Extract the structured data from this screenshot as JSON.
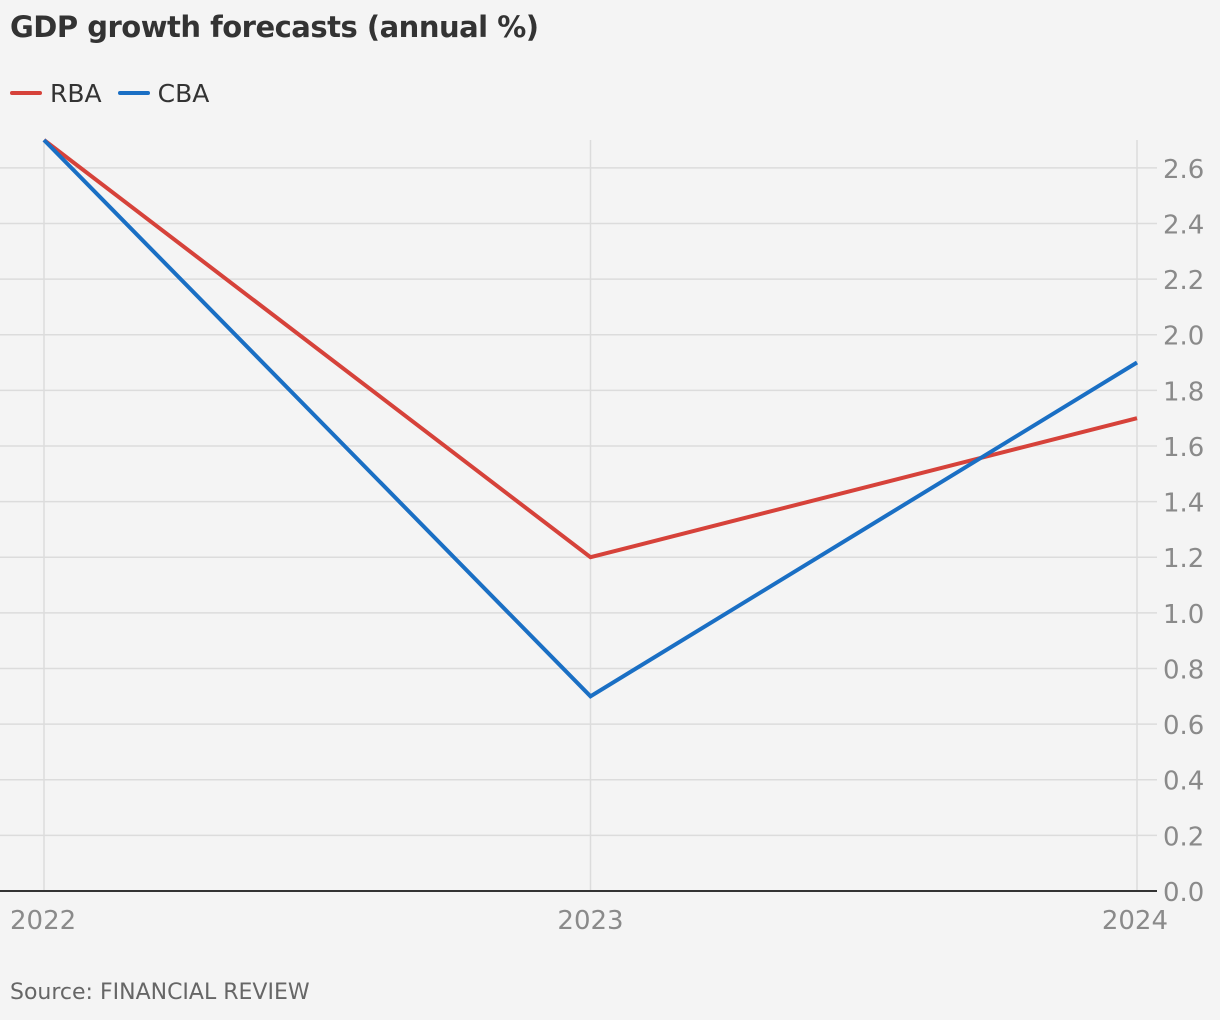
{
  "chart_data": {
    "type": "line",
    "title": "GDP growth forecasts (annual %)",
    "x": [
      "2022",
      "2023",
      "2024"
    ],
    "series": [
      {
        "name": "RBA",
        "color": "#d6423a",
        "values": [
          2.7,
          1.2,
          1.7
        ]
      },
      {
        "name": "CBA",
        "color": "#1a6fc4",
        "values": [
          2.7,
          0.7,
          1.9
        ]
      }
    ],
    "y_ticks": [
      "0.0",
      "0.2",
      "0.4",
      "0.6",
      "0.8",
      "1.0",
      "1.2",
      "1.4",
      "1.6",
      "1.8",
      "2.0",
      "2.2",
      "2.4",
      "2.6"
    ],
    "ylim": [
      0,
      2.7
    ],
    "y_axis_side": "right",
    "grid": true,
    "legend_position": "top-left",
    "xlabel": "",
    "ylabel": ""
  },
  "footer": {
    "source": "Source: FINANCIAL REVIEW"
  }
}
